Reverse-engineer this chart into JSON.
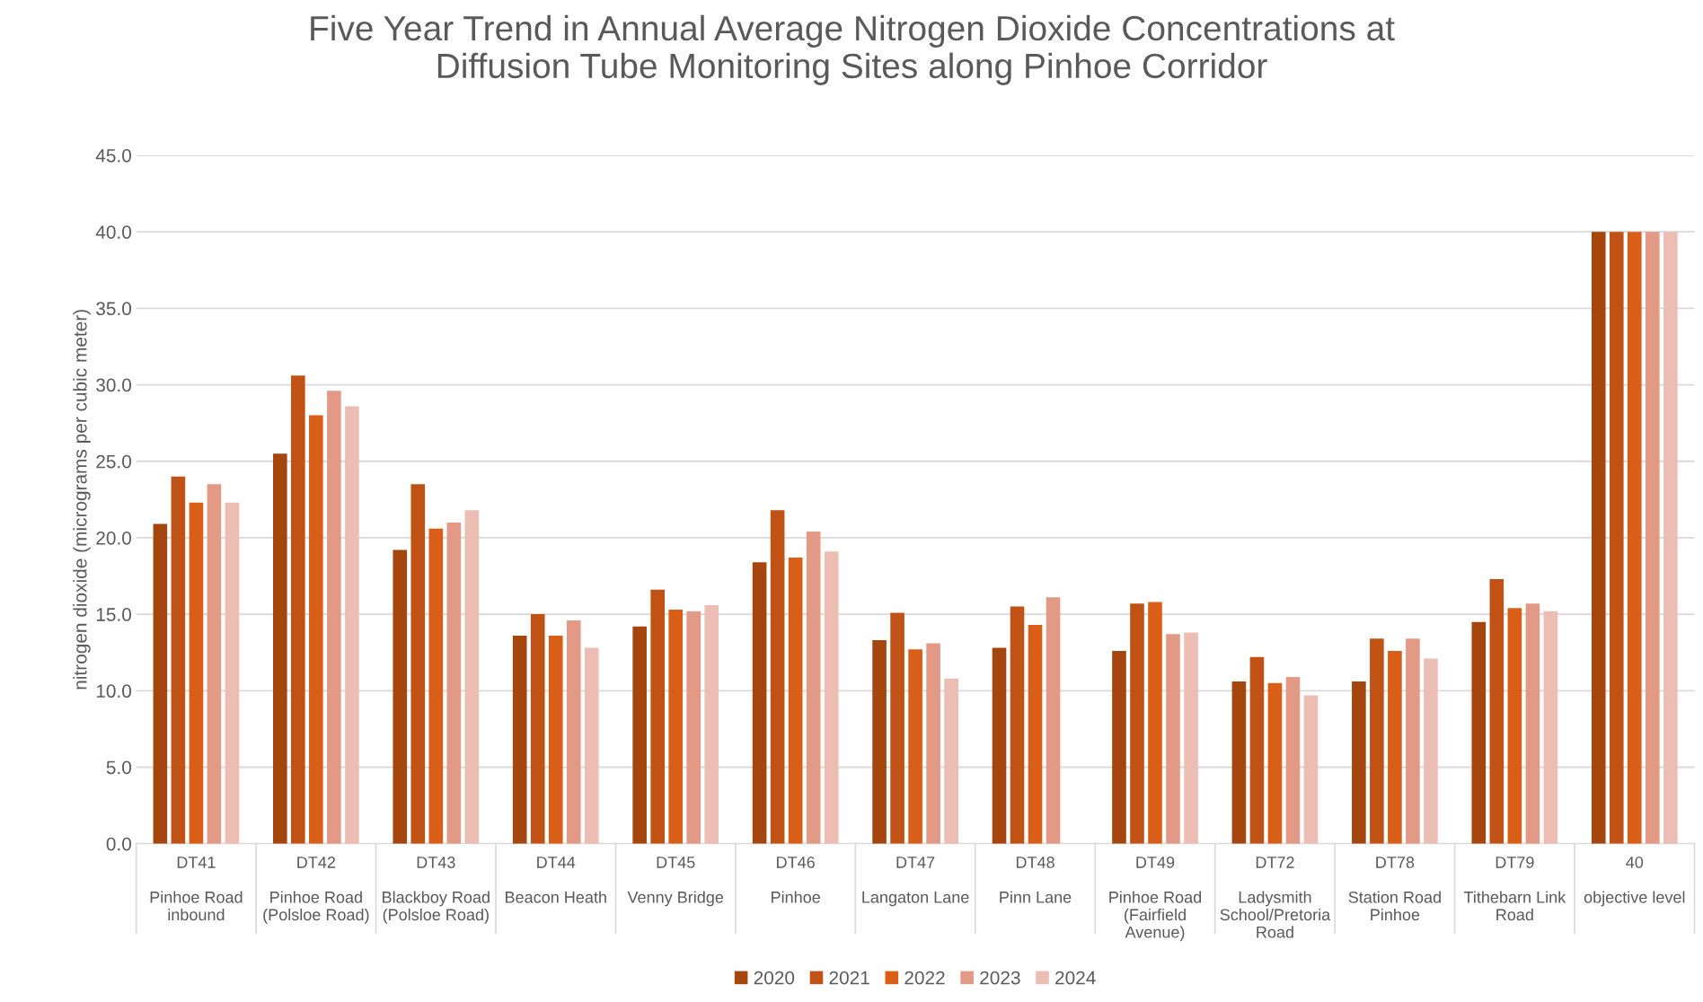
{
  "chart_data": {
    "type": "bar",
    "title": "Five Year Trend in Annual Average Nitrogen Dioxide Concentrations at\nDiffusion Tube Monitoring Sites along Pinhoe Corridor",
    "ylabel": "nitrogen dioxide (micrograms per cubic meter)",
    "categories": [
      "DT41\n\nPinhoe Road\ninbound",
      "DT42\n\nPinhoe Road\n(Polsloe Road)",
      "DT43\n\nBlackboy Road\n(Polsloe Road)",
      "DT44\n\nBeacon Heath",
      "DT45\n\nVenny Bridge",
      "DT46\n\nPinhoe",
      "DT47\n\nLangaton Lane",
      "DT48\n\nPinn Lane",
      "DT49\n\nPinhoe Road\n(Fairfield\nAvenue)",
      "DT72\n\nLadysmith\nSchool/Pretoria\nRoad",
      "DT78\n\nStation Road\nPinhoe",
      "DT79\n\nTithebarn Link\nRoad",
      "40\n\nobjective level"
    ],
    "series": [
      {
        "name": "2020",
        "color": "#a5460f",
        "values": [
          20.9,
          25.5,
          19.2,
          13.6,
          14.2,
          18.4,
          13.3,
          12.8,
          12.6,
          10.6,
          10.6,
          14.5,
          40
        ]
      },
      {
        "name": "2021",
        "color": "#c05215",
        "values": [
          24.0,
          30.6,
          23.5,
          15.0,
          16.6,
          21.8,
          15.1,
          15.5,
          15.7,
          12.2,
          13.4,
          17.3,
          40
        ]
      },
      {
        "name": "2022",
        "color": "#d95f18",
        "values": [
          22.3,
          28.0,
          20.6,
          13.6,
          15.3,
          18.7,
          12.7,
          14.3,
          15.8,
          10.5,
          12.6,
          15.4,
          40
        ]
      },
      {
        "name": "2023",
        "color": "#e29a86",
        "values": [
          23.5,
          29.6,
          21.0,
          14.6,
          15.2,
          20.4,
          13.1,
          16.1,
          13.7,
          10.9,
          13.4,
          15.7,
          40
        ]
      },
      {
        "name": "2024",
        "color": "#ecbdb3",
        "values": [
          22.3,
          28.6,
          21.8,
          12.8,
          15.6,
          19.1,
          10.8,
          null,
          13.8,
          9.7,
          12.1,
          15.2,
          40
        ]
      }
    ],
    "ylim": [
      0,
      45
    ],
    "yticks": [
      {
        "value": 0,
        "label": "0.0"
      },
      {
        "value": 5,
        "label": "5.0"
      },
      {
        "value": 10,
        "label": "10.0"
      },
      {
        "value": 15,
        "label": "15.0"
      },
      {
        "value": 20,
        "label": "20.0"
      },
      {
        "value": 25,
        "label": "25.0"
      },
      {
        "value": 30,
        "label": "30.0"
      },
      {
        "value": 35,
        "label": "35.0"
      },
      {
        "value": 40,
        "label": "40.0"
      },
      {
        "value": 45,
        "label": "45.0"
      }
    ],
    "grid": "y",
    "legend": "bottom"
  }
}
